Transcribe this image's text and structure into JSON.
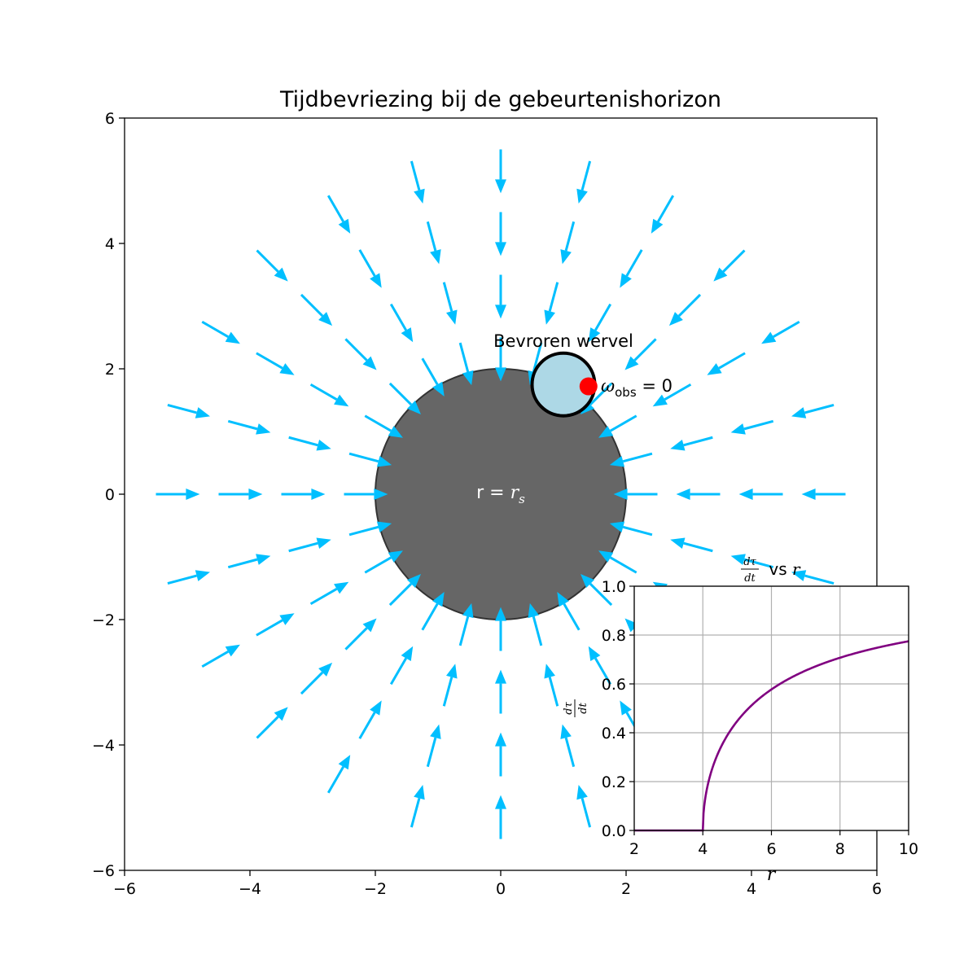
{
  "chart_data": [
    {
      "type": "quiver",
      "title": "Tijdbevriezing bij de gebeurtenishorizon",
      "xlim": [
        -6,
        6
      ],
      "ylim": [
        -6,
        6
      ],
      "xticks": [
        -6,
        -4,
        -2,
        0,
        2,
        4,
        6
      ],
      "yticks": [
        -6,
        -4,
        -2,
        0,
        2,
        4,
        6
      ],
      "xtick_labels": [
        "−6",
        "−4",
        "−2",
        "0",
        "2",
        "4",
        "6"
      ],
      "ytick_labels": [
        "−6",
        "−4",
        "−2",
        "0",
        "2",
        "4",
        "6"
      ],
      "grid": false,
      "arrow_color": "#00bfff",
      "field": {
        "description_directions": 24,
        "directions_deg_start": 0,
        "directions_deg_step": 15,
        "segments_radii": [
          [
            5.5,
            4.8
          ],
          [
            4.5,
            3.8
          ],
          [
            3.5,
            2.8
          ],
          [
            2.5,
            1.8
          ]
        ]
      },
      "horizon": {
        "radius": 2,
        "label_prefix": "r = ",
        "label_symbol": "r",
        "label_subscript": "s",
        "color": "#555555"
      },
      "vortex": {
        "center": [
          1,
          1.75
        ],
        "radius": 0.5,
        "label": "Bevroren wervel",
        "fill": "#add8e6"
      },
      "observer": {
        "point": [
          1.4,
          1.72
        ],
        "color": "#ff0000",
        "label_symbol": "ω",
        "label_subscript": "obs",
        "label_suffix": " = 0"
      }
    },
    {
      "type": "line",
      "title_symbol_num": "dτ",
      "title_symbol_den": "dt",
      "title_suffix": " vs ",
      "title_var": "r",
      "xlabel": "r",
      "ylabel_num": "dτ",
      "ylabel_den": "dt",
      "xlim": [
        2,
        10
      ],
      "ylim": [
        0,
        1
      ],
      "xticks": [
        2,
        4,
        6,
        8,
        10
      ],
      "yticks": [
        0.0,
        0.2,
        0.4,
        0.6,
        0.8,
        1.0
      ],
      "xtick_labels": [
        "2",
        "4",
        "6",
        "8",
        "10"
      ],
      "ytick_labels": [
        "0.0",
        "0.2",
        "0.4",
        "0.6",
        "0.8",
        "1.0"
      ],
      "grid": true,
      "color": "#800080",
      "function": "sqrt(max(0, 1 - 4/r))",
      "x": [
        2,
        3,
        4,
        4.2,
        4.5,
        5,
        5.5,
        6,
        7,
        8,
        9,
        10
      ],
      "y": [
        0,
        0,
        0,
        0.218,
        0.333,
        0.447,
        0.522,
        0.577,
        0.655,
        0.707,
        0.745,
        0.775
      ]
    }
  ]
}
